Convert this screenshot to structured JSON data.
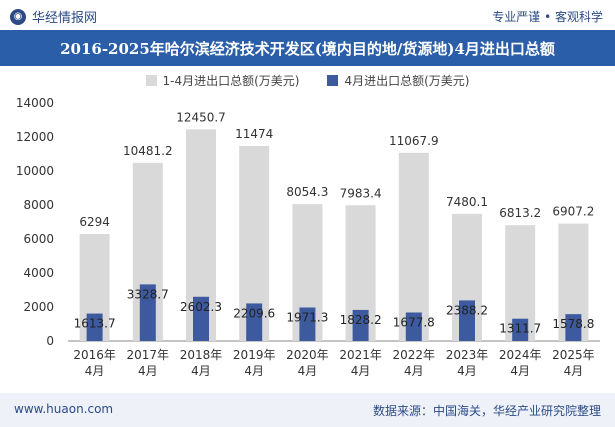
{
  "header": {
    "logo_text": "华经情报网",
    "tagline": "专业严谨 • 客观科学"
  },
  "footer": {
    "website": "www.huaon.com",
    "source": "数据来源：中国海关，华经产业研究院整理"
  },
  "colors": {
    "series1": "#d9d9d9",
    "series2": "#3d5a9e",
    "title_bar": "#2a5ea8"
  },
  "chart_data": {
    "type": "bar",
    "title": "2016-2025年哈尔滨经济技术开发区(境内目的地/货源地)4月进出口总额",
    "categories": [
      "2016年\n4月",
      "2017年\n4月",
      "2018年\n4月",
      "2019年\n4月",
      "2020年\n4月",
      "2021年\n4月",
      "2022年\n4月",
      "2023年\n4月",
      "2024年\n4月",
      "2025年\n4月"
    ],
    "series": [
      {
        "name": "1-4月进出口总额(万美元)",
        "values": [
          6294,
          10481.2,
          12450.7,
          11474,
          8054.3,
          7983.4,
          11067.9,
          7480.1,
          6813.2,
          6907.2
        ],
        "labels": [
          "6294",
          "10481.2",
          "12450.7",
          "11474",
          "8054.3",
          "7983.4",
          "11067.9",
          "7480.1",
          "6813.2",
          "6907.2"
        ]
      },
      {
        "name": "4月进出口总额(万美元)",
        "values": [
          1613.7,
          3328.7,
          2602.3,
          2209.6,
          1971.3,
          1828.2,
          1677.8,
          2388.2,
          1311.7,
          1578.8
        ],
        "labels": [
          "1613.7",
          "3328.7",
          "2602.3",
          "2209.6",
          "1971.3",
          "1828.2",
          "1677.8",
          "2388.2",
          "1311.7",
          "1578.8"
        ]
      }
    ],
    "ylim": [
      0,
      14000
    ],
    "yticks": [
      0,
      2000,
      4000,
      6000,
      8000,
      10000,
      12000,
      14000
    ],
    "legend_position": "top-center",
    "grid": false
  }
}
